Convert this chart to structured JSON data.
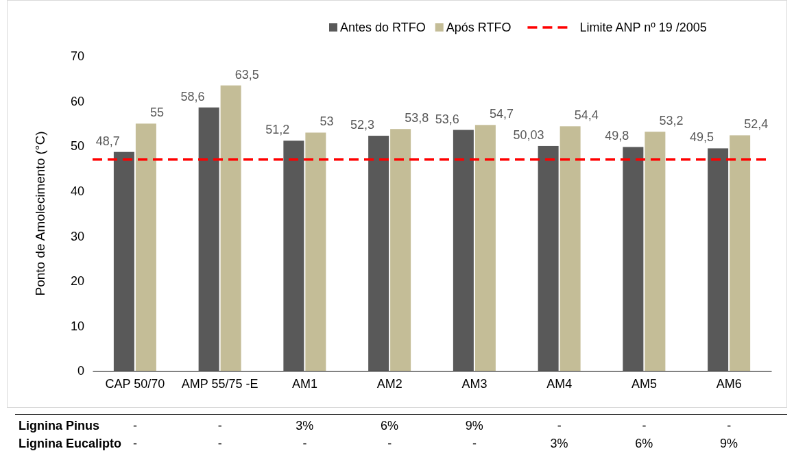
{
  "chart_data": {
    "type": "bar",
    "ylabel": "Ponto de Amolecimento (°C)",
    "categories": [
      "CAP 50/70",
      "AMP 55/75 -E",
      "AM1",
      "AM2",
      "AM3",
      "AM4",
      "AM5",
      "AM6"
    ],
    "series": [
      {
        "name": "Antes do RTFO",
        "color": "#595959",
        "values": [
          48.7,
          58.6,
          51.2,
          52.3,
          53.6,
          50.03,
          49.8,
          49.5
        ],
        "value_labels": [
          "48,7",
          "58,6",
          "51,2",
          "52,3",
          "53,6",
          "50,03",
          "49,8",
          "49,5"
        ]
      },
      {
        "name": "Após RTFO",
        "color": "#c4bd97",
        "values": [
          55,
          63.5,
          53,
          53.8,
          54.7,
          54.4,
          53.2,
          52.4
        ],
        "value_labels": [
          "55",
          "63,5",
          "53",
          "53,8",
          "54,7",
          "54,4",
          "53,2",
          "52,4"
        ]
      }
    ],
    "ylim": [
      0,
      70
    ],
    "yticks": [
      0,
      10,
      20,
      30,
      40,
      50,
      60,
      70
    ],
    "grid": false,
    "legend": "top right",
    "ref_lines": [
      {
        "axis": "y",
        "value": 47,
        "label": "Limite ANP nº 19 /2005",
        "color": "#ff0000",
        "line_style": "dashed"
      }
    ],
    "annotations": [
      "Lignina Pinus",
      "-",
      "-",
      "3%",
      "6%",
      "9%",
      "-",
      "-",
      "-",
      "Lignina Eucalipto",
      "-",
      "-",
      "-",
      "-",
      "-",
      "3%",
      "6%",
      "9%"
    ]
  }
}
